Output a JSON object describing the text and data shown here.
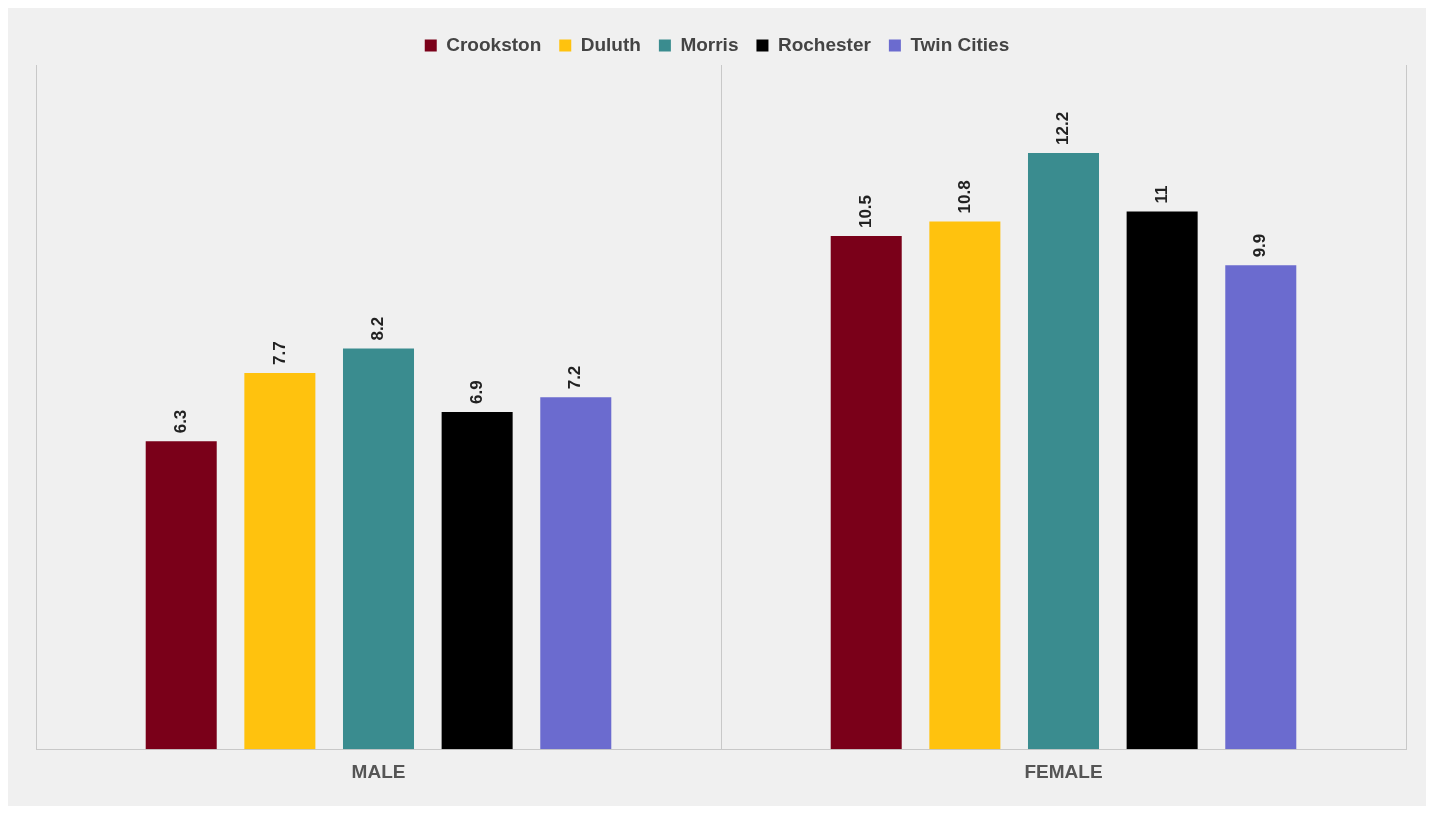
{
  "chart_data": {
    "type": "bar",
    "categories": [
      "MALE",
      "FEMALE"
    ],
    "series": [
      {
        "name": "Crookston",
        "color": "#7a0019",
        "values": [
          6.3,
          10.5
        ]
      },
      {
        "name": "Duluth",
        "color": "#ffc20e",
        "values": [
          7.7,
          10.8
        ]
      },
      {
        "name": "Morris",
        "color": "#3a8c8f",
        "values": [
          8.2,
          12.2
        ]
      },
      {
        "name": "Rochester",
        "color": "#000000",
        "values": [
          6.9,
          11
        ]
      },
      {
        "name": "Twin Cities",
        "color": "#6b6bcf",
        "values": [
          7.2,
          9.9
        ]
      }
    ],
    "ylim": [
      0,
      14
    ],
    "grid": "x",
    "legend": "top",
    "data_labels": true
  }
}
